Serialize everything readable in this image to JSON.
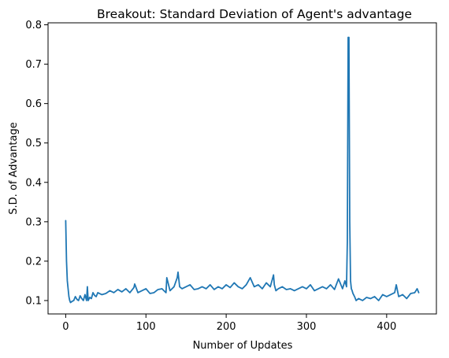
{
  "chart_data": {
    "type": "line",
    "title": "Breakout: Standard Deviation of Agent's advantage",
    "xlabel": "Number of Updates",
    "ylabel": "S.D. of Advantage",
    "xlim": [
      -22,
      462
    ],
    "ylim": [
      0.066,
      0.805
    ],
    "xticks": [
      0,
      100,
      200,
      300,
      400
    ],
    "xtick_labels": [
      "0",
      "100",
      "200",
      "300",
      "400"
    ],
    "yticks": [
      0.1,
      0.2,
      0.3,
      0.4,
      0.5,
      0.6,
      0.7,
      0.8
    ],
    "ytick_labels": [
      "0.1",
      "0.2",
      "0.3",
      "0.4",
      "0.5",
      "0.6",
      "0.7",
      "0.8"
    ],
    "grid": false,
    "series": [
      {
        "color": "#1f77b4",
        "x": [
          0,
          1,
          2,
          3,
          4,
          5,
          6,
          8,
          10,
          12,
          14,
          16,
          18,
          20,
          22,
          24,
          26,
          27,
          28,
          30,
          32,
          34,
          36,
          38,
          40,
          45,
          50,
          55,
          60,
          65,
          70,
          75,
          80,
          85,
          86,
          90,
          95,
          100,
          105,
          110,
          115,
          120,
          125,
          126,
          130,
          135,
          139,
          140,
          142,
          145,
          150,
          155,
          160,
          165,
          170,
          175,
          180,
          185,
          190,
          195,
          200,
          205,
          210,
          215,
          220,
          225,
          230,
          235,
          240,
          245,
          250,
          255,
          259,
          260,
          262,
          265,
          270,
          275,
          280,
          285,
          290,
          295,
          300,
          305,
          310,
          315,
          320,
          325,
          330,
          335,
          340,
          345,
          348,
          350,
          351,
          352,
          353,
          354,
          355,
          356,
          357,
          358,
          360,
          362,
          365,
          370,
          375,
          380,
          385,
          390,
          395,
          400,
          405,
          410,
          412,
          415,
          420,
          425,
          430,
          435,
          438,
          440
        ],
        "y": [
          0.303,
          0.2,
          0.15,
          0.13,
          0.11,
          0.1,
          0.095,
          0.098,
          0.1,
          0.11,
          0.103,
          0.1,
          0.112,
          0.105,
          0.1,
          0.115,
          0.1,
          0.135,
          0.1,
          0.108,
          0.105,
          0.12,
          0.113,
          0.11,
          0.12,
          0.115,
          0.118,
          0.125,
          0.12,
          0.128,
          0.122,
          0.13,
          0.12,
          0.133,
          0.142,
          0.12,
          0.125,
          0.13,
          0.118,
          0.12,
          0.128,
          0.13,
          0.12,
          0.158,
          0.125,
          0.135,
          0.158,
          0.172,
          0.135,
          0.13,
          0.135,
          0.14,
          0.128,
          0.13,
          0.135,
          0.13,
          0.14,
          0.128,
          0.135,
          0.13,
          0.14,
          0.133,
          0.145,
          0.135,
          0.13,
          0.14,
          0.158,
          0.135,
          0.14,
          0.13,
          0.145,
          0.135,
          0.165,
          0.14,
          0.125,
          0.13,
          0.135,
          0.128,
          0.13,
          0.125,
          0.13,
          0.135,
          0.13,
          0.14,
          0.125,
          0.13,
          0.135,
          0.13,
          0.14,
          0.128,
          0.155,
          0.13,
          0.15,
          0.135,
          0.25,
          0.768,
          0.768,
          0.3,
          0.15,
          0.13,
          0.125,
          0.118,
          0.11,
          0.1,
          0.105,
          0.1,
          0.108,
          0.105,
          0.11,
          0.1,
          0.115,
          0.11,
          0.115,
          0.12,
          0.14,
          0.11,
          0.115,
          0.105,
          0.118,
          0.12,
          0.13,
          0.12
        ]
      }
    ]
  }
}
